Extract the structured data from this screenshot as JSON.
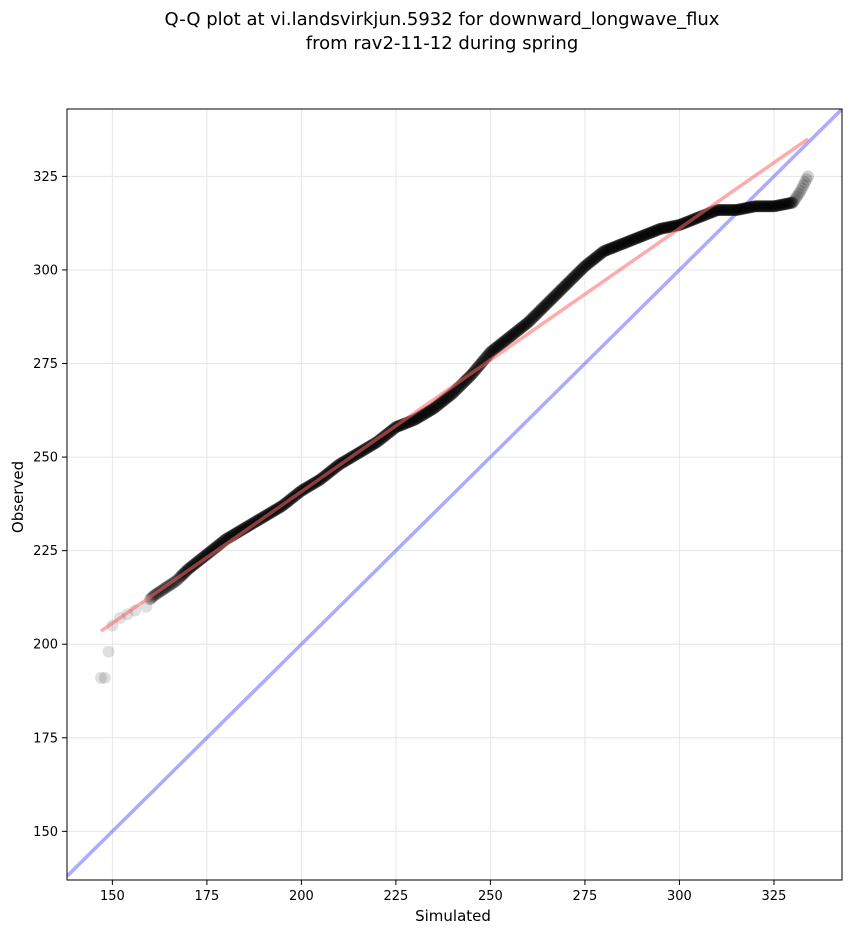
{
  "chart_data": {
    "type": "scatter",
    "title_line1": "Q-Q plot at vi.landsvirkjun.5932 for downward_longwave_flux",
    "title_line2": "from rav2-11-12 during spring",
    "xlabel": "Simulated",
    "ylabel": "Observed",
    "xlim": [
      138,
      343
    ],
    "ylim": [
      137,
      343
    ],
    "xticks": [
      150,
      175,
      200,
      225,
      250,
      275,
      300,
      325
    ],
    "yticks": [
      150,
      175,
      200,
      225,
      250,
      275,
      300,
      325
    ],
    "grid": true,
    "colors": {
      "points": "#000000",
      "fit_line": "#ff6666",
      "one_to_one_line": "#6666ff",
      "grid": "#e6e6e6",
      "axes": "#000000"
    },
    "fit_line": {
      "x": [
        147,
        334
      ],
      "y": [
        203.5,
        335
      ]
    },
    "one_to_one_line": {
      "x": [
        138,
        343
      ],
      "y": [
        138,
        343
      ]
    },
    "quantile_curve": {
      "x": [
        147,
        149,
        152,
        155,
        158,
        161,
        164,
        167,
        170,
        175,
        180,
        185,
        190,
        195,
        200,
        205,
        210,
        215,
        220,
        225,
        230,
        235,
        240,
        245,
        250,
        255,
        260,
        265,
        270,
        275,
        280,
        285,
        290,
        295,
        300,
        305,
        310,
        315,
        320,
        325,
        330,
        332,
        333,
        334
      ],
      "y": [
        191,
        198,
        206,
        208,
        210,
        213,
        215,
        217,
        220,
        224,
        228,
        231,
        234,
        237,
        241,
        244,
        248,
        251,
        254,
        258,
        260,
        263,
        267,
        272,
        278,
        282,
        286,
        291,
        296,
        301,
        305,
        307,
        309,
        311,
        312,
        314,
        316,
        316,
        317,
        317,
        318,
        321,
        323,
        325
      ]
    },
    "n_points": 460,
    "low_confidence_points": [
      {
        "x": 147,
        "y": 191
      },
      {
        "x": 148,
        "y": 191
      },
      {
        "x": 149,
        "y": 198
      },
      {
        "x": 150,
        "y": 205
      },
      {
        "x": 152,
        "y": 207
      },
      {
        "x": 154,
        "y": 208
      },
      {
        "x": 156,
        "y": 209
      },
      {
        "x": 159,
        "y": 210
      }
    ]
  }
}
